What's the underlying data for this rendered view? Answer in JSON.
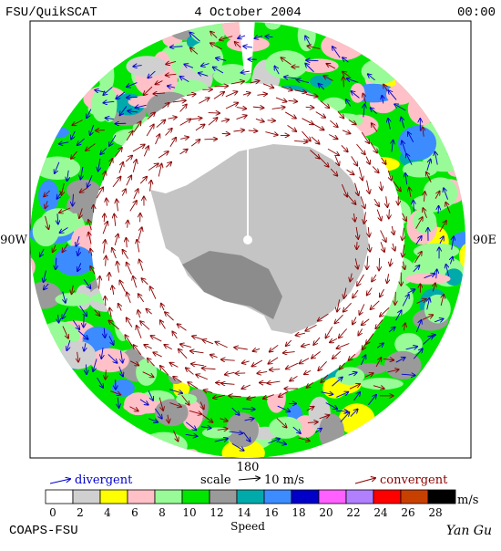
{
  "header": {
    "left": "FSU/QuikSCAT",
    "center": "4 October 2004",
    "right": "00:00"
  },
  "axis_labels": {
    "left": "90W",
    "right": "90E",
    "bottom": "180"
  },
  "legend": {
    "divergent": "divergent",
    "scale": "scale",
    "scale_value": "10 m/s",
    "convergent": "convergent"
  },
  "colorbar": {
    "ticks": [
      0,
      2,
      4,
      6,
      8,
      10,
      12,
      14,
      16,
      18,
      20,
      22,
      24,
      26,
      28
    ],
    "unit": "m/s",
    "label": "Speed",
    "colors": [
      "#ffffff",
      "#d0d0d0",
      "#ffff00",
      "#ffc0c8",
      "#98fb98",
      "#00e600",
      "#9a9a9a",
      "#00aaaa",
      "#3c8cff",
      "#0000c8",
      "#ff60ff",
      "#b080ff",
      "#ff0000",
      "#c84000",
      "#000000"
    ]
  },
  "footer": {
    "left": "COAPS-FSU",
    "right": "Yan Gu"
  }
}
